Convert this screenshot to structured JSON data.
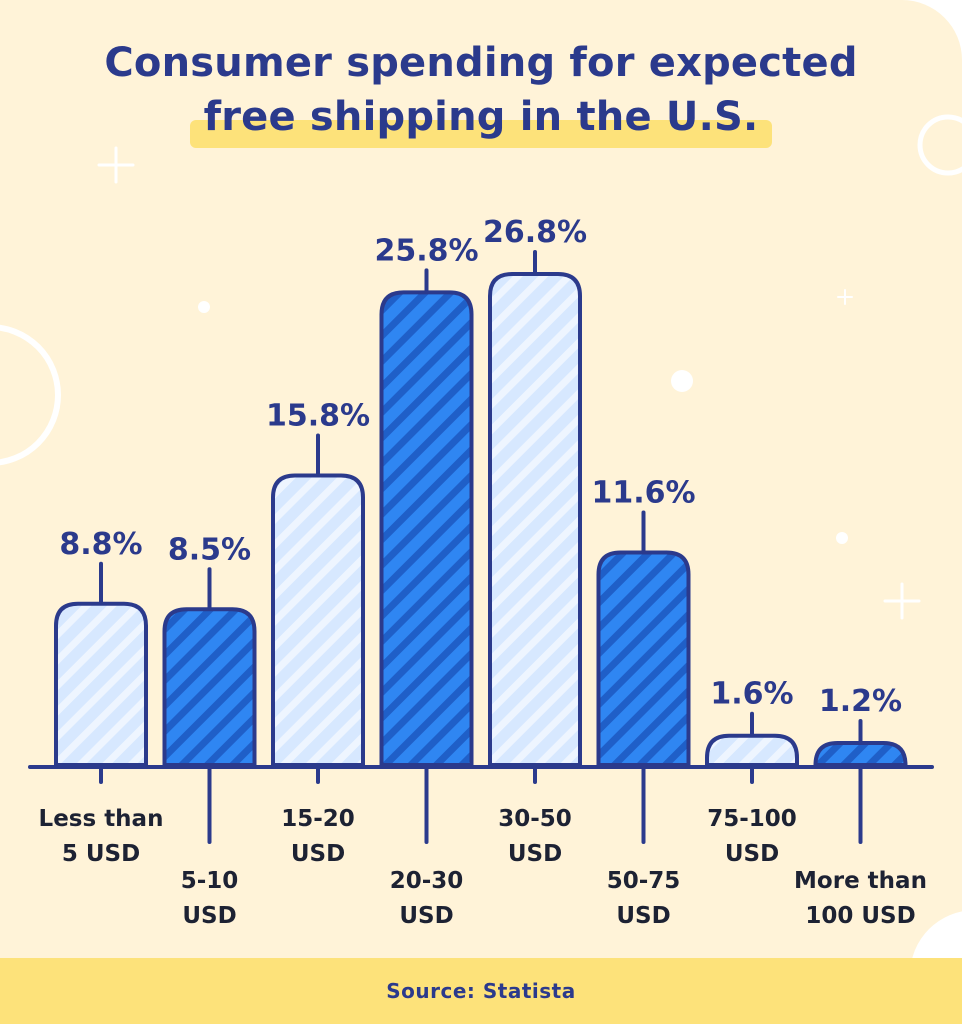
{
  "title": {
    "line1": "Consumer spending for expected",
    "line2": "free shipping in the U.S."
  },
  "source": "Source: Statista",
  "colors": {
    "background": "#fff3d8",
    "navy": "#2b3a8c",
    "bar_light": "#d7e8ff",
    "bar_dark": "#2f86f2",
    "highlight": "#fde27a"
  },
  "chart_data": {
    "type": "bar",
    "title": "Consumer spending for expected free shipping in the U.S.",
    "categories": [
      [
        "Less than",
        "5 USD"
      ],
      [
        "5-10",
        "USD"
      ],
      [
        "15-20",
        "USD"
      ],
      [
        "20-30",
        "USD"
      ],
      [
        "30-50",
        "USD"
      ],
      [
        "50-75",
        "USD"
      ],
      [
        "75-100",
        "USD"
      ],
      [
        "More than",
        "100 USD"
      ]
    ],
    "values": [
      8.8,
      8.5,
      15.8,
      25.8,
      26.8,
      11.6,
      1.6,
      1.2
    ],
    "value_labels": [
      "8.8%",
      "8.5%",
      "15.8%",
      "25.8%",
      "26.8%",
      "11.6%",
      "1.6%",
      "1.2%"
    ],
    "bar_styles": [
      "light",
      "dark",
      "light",
      "dark",
      "light",
      "dark",
      "light",
      "dark"
    ],
    "unit": "%",
    "ylim": [
      0,
      30
    ],
    "grid": false,
    "legend": "none"
  }
}
